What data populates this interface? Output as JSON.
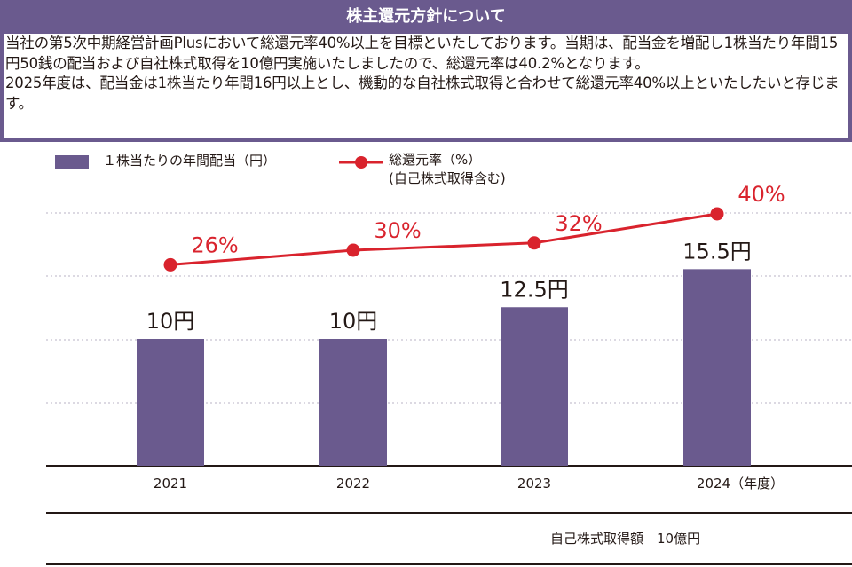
{
  "header": {
    "title": "株主還元方針について"
  },
  "intro": {
    "paragraph1": "当社の第5次中期経営計画Plusにおいて総還元率40%以上を目標といたしております。当期は、配当金を増配し1株当たり年間15円50銭の配当および自社株式取得を10億円実施いたしましたので、総還元率は40.2%となります。",
    "paragraph2": "2025年度は、配当金は1株当たり年間16円以上とし、機動的な自社株式取得と合わせて総還元率40%以上といたしたいと存じます。"
  },
  "legend": {
    "bar_label": "１株当たりの年間配当（円）",
    "line_label": "総還元率（%）",
    "line_sublabel": "(自己株式取得含む)"
  },
  "footer": {
    "note": "自己株式取得額　10億円"
  },
  "colors": {
    "bar": "#6a5a8e",
    "line": "#d9232d",
    "header": "#6a5a8e"
  },
  "chart_data": {
    "type": "bar",
    "categories": [
      "2021",
      "2022",
      "2023",
      "2024"
    ],
    "category_labels": [
      "2021",
      "2022",
      "2023",
      "2024（年度）"
    ],
    "series": [
      {
        "name": "１株当たりの年間配当（円）",
        "type": "bar",
        "values": [
          10,
          10,
          12.5,
          15.5
        ],
        "labels": [
          "10円",
          "10円",
          "12.5円",
          "15.5円"
        ]
      },
      {
        "name": "総還元率（%）",
        "type": "line",
        "values": [
          26,
          30,
          32,
          40
        ],
        "labels": [
          "26%",
          "30%",
          "32%",
          "40%"
        ]
      }
    ],
    "ylim": [
      0,
      20
    ],
    "grid": true
  }
}
